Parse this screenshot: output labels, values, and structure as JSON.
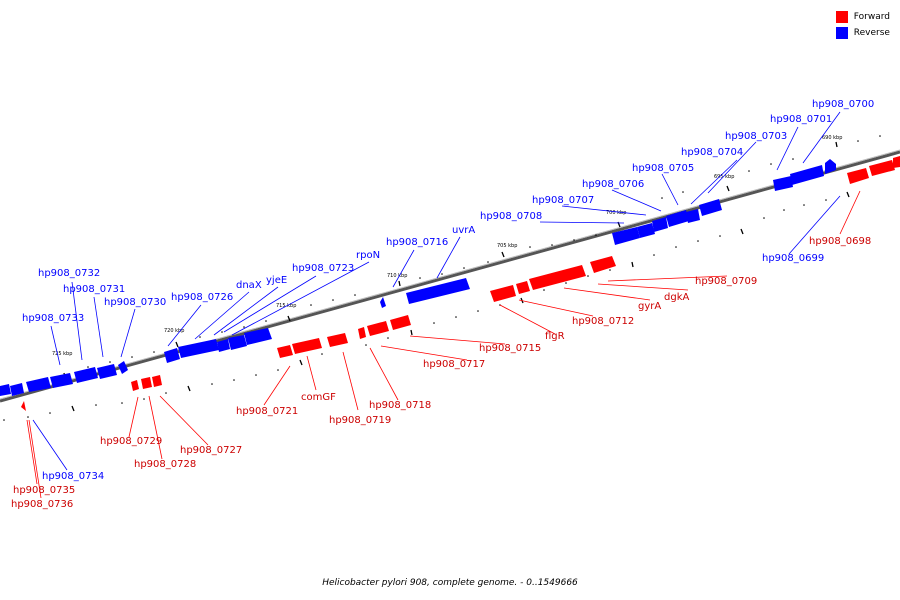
{
  "legend": {
    "forward_label": "Forward",
    "reverse_label": "Reverse",
    "forward_color": "#ff0000",
    "reverse_color": "#0000ff"
  },
  "caption": "Helicobacter pylori 908, complete genome. - 0..1549666",
  "scale_marks": [
    "690 kbp",
    "695 kbp",
    "700 kbp",
    "705 kbp",
    "710 kbp",
    "715 kbp",
    "720 kbp",
    "725 kbp"
  ],
  "genes_reverse": [
    "hp908_0700",
    "hp908_0701",
    "hp908_0703",
    "hp908_0704",
    "hp908_0705",
    "hp908_0706",
    "hp908_0707",
    "hp908_0708",
    "uvrA",
    "hp908_0716",
    "rpoN",
    "hp908_0723",
    "yjeE",
    "dnaX",
    "hp908_0726",
    "hp908_0730",
    "hp908_0731",
    "hp908_0732",
    "hp908_0733",
    "hp908_0734",
    "hp908_0699"
  ],
  "genes_forward": [
    "hp908_0698",
    "hp908_0709",
    "dgkA",
    "gyrA",
    "hp908_0712",
    "flgR",
    "hp908_0715",
    "hp908_0717",
    "hp908_0718",
    "hp908_0719",
    "comGF",
    "hp908_0721",
    "hp908_0727",
    "hp908_0728",
    "hp908_0729",
    "hp908_0735",
    "hp908_0736"
  ]
}
